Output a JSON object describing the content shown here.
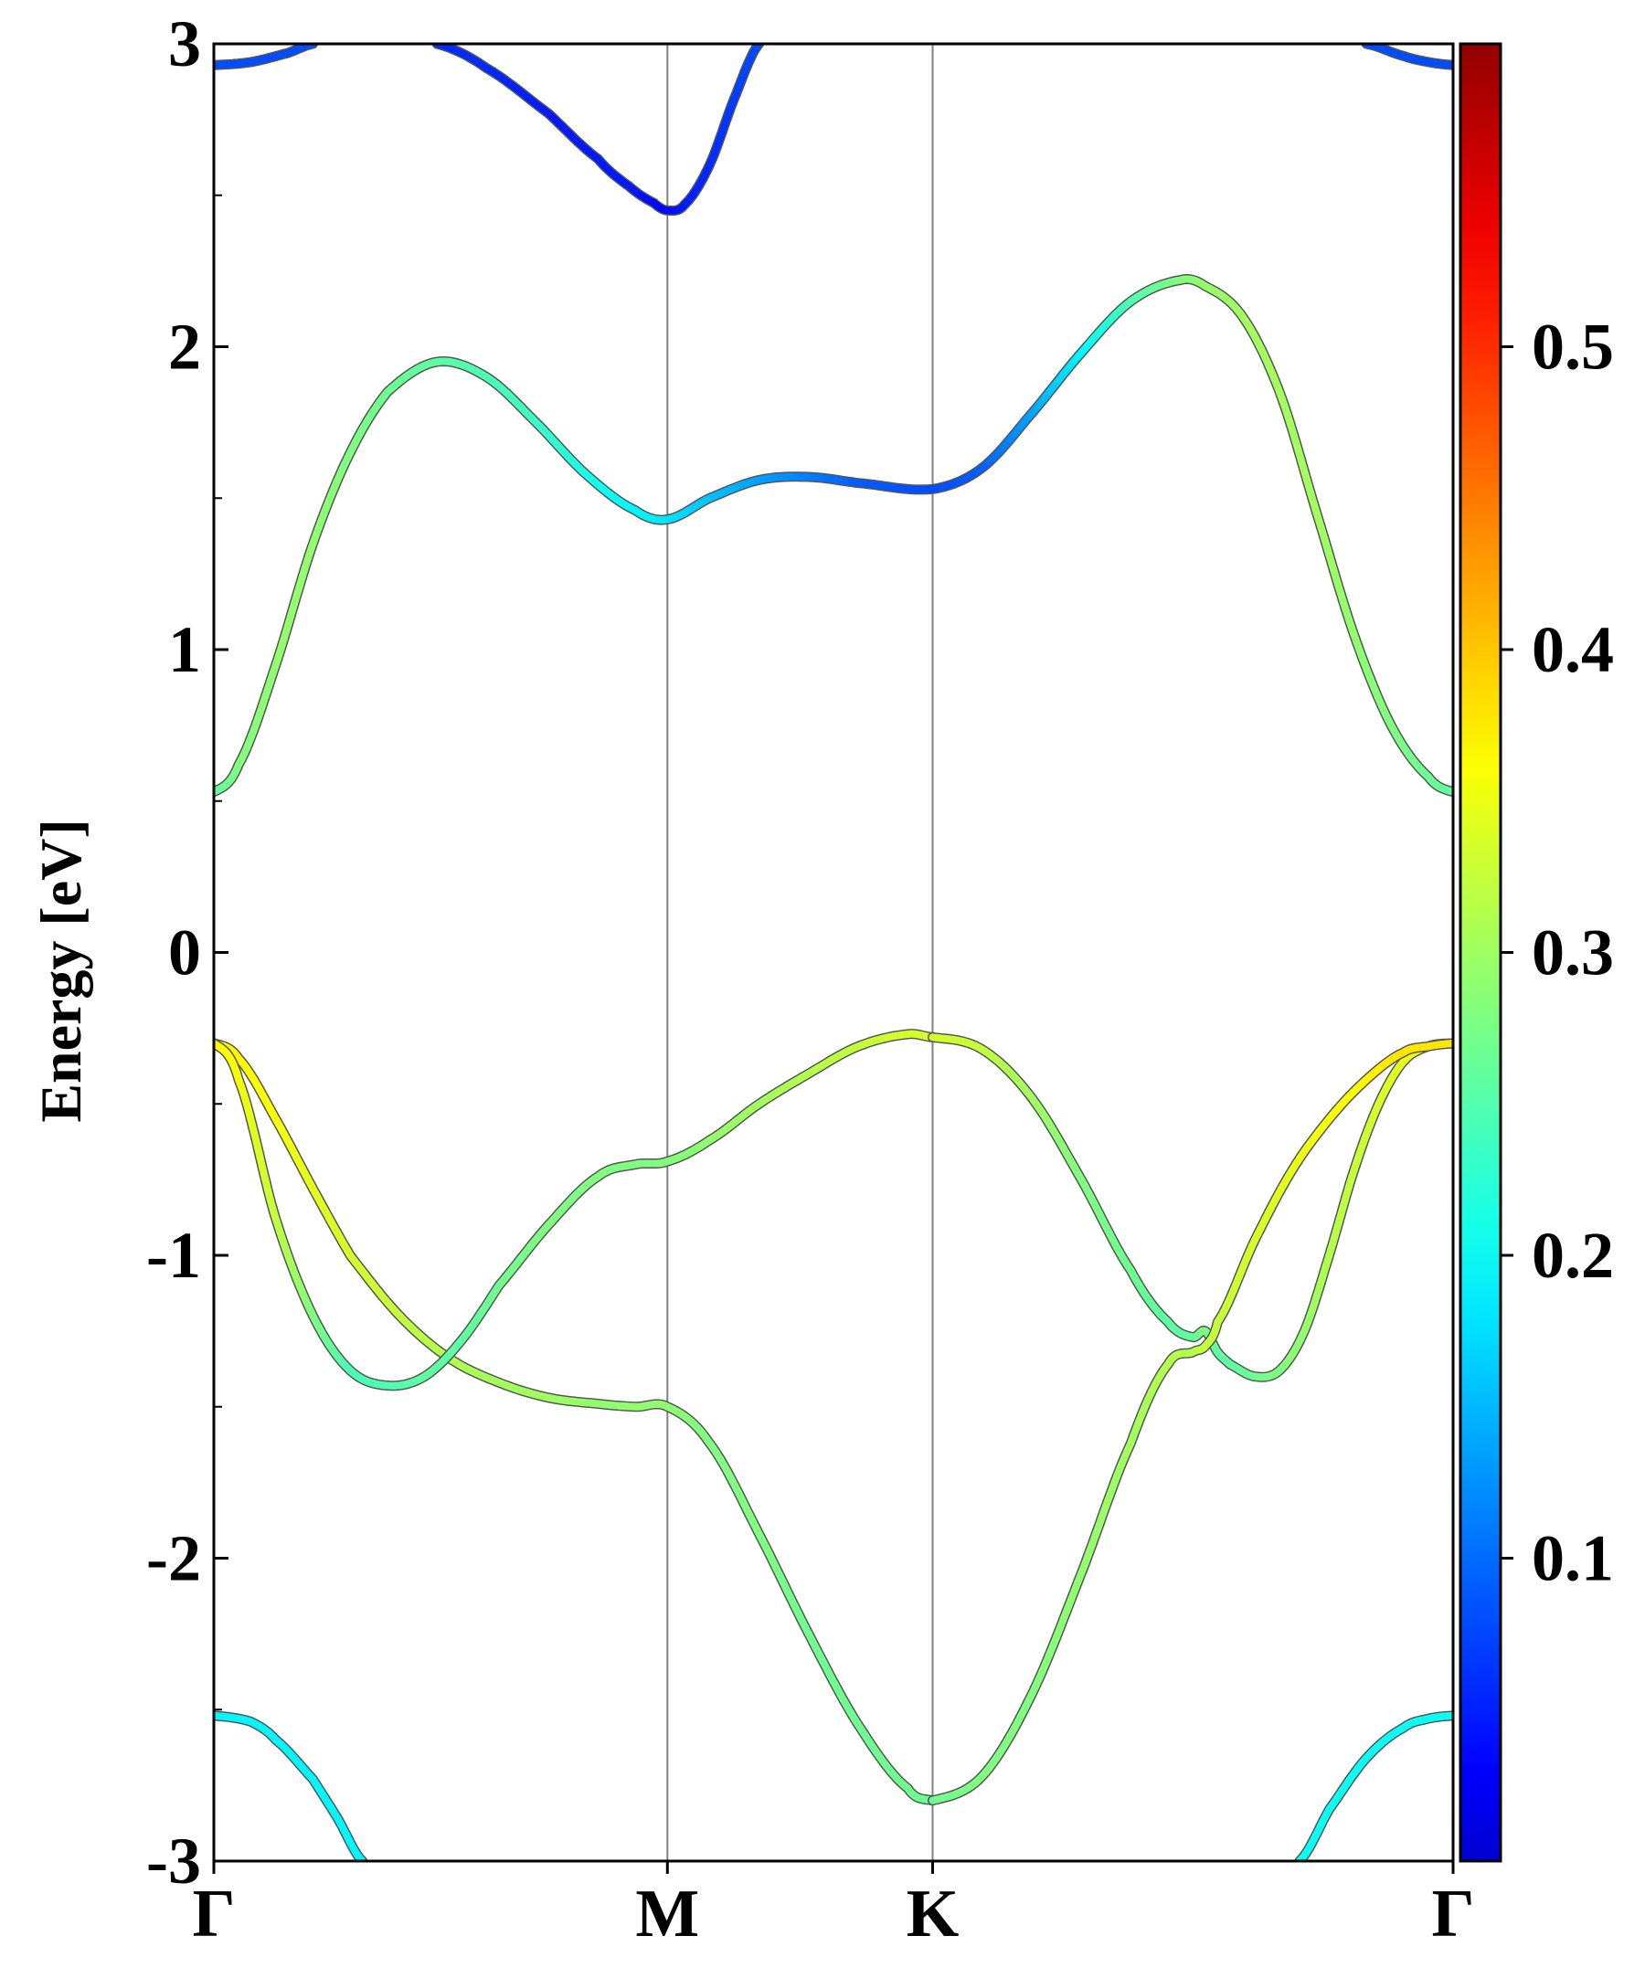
{
  "chart_data": {
    "type": "line",
    "ylabel": "Energy [eV]",
    "xlabel": "",
    "ylim": [
      -3,
      3
    ],
    "yticks": [
      3,
      2,
      1,
      0,
      -1,
      -2,
      -3
    ],
    "ytick_labels": [
      "3",
      "2",
      "1",
      "0",
      "-1",
      "-2",
      "-3"
    ],
    "xlim": [
      0,
      1
    ],
    "high_symmetry_points": [
      {
        "label": "Γ",
        "x": 0.0
      },
      {
        "label": "M",
        "x": 0.366
      },
      {
        "label": "K",
        "x": 0.58
      },
      {
        "label": "Γ",
        "x": 1.0
      }
    ],
    "colorbar": {
      "colormap": "jet",
      "min": 0.0,
      "max": 0.6,
      "ticks": [
        0.1,
        0.2,
        0.3,
        0.4,
        0.5
      ],
      "tick_labels": [
        "0.1",
        "0.2",
        "0.3",
        "0.4",
        "0.5"
      ]
    },
    "series": [
      {
        "x": [
          0.0,
          0.03,
          0.06,
          0.08
        ],
        "y": [
          2.93,
          2.94,
          2.97,
          3.0
        ],
        "weight": [
          0.12,
          0.12,
          0.12,
          0.12
        ]
      },
      {
        "x": [
          0.93,
          0.96,
          0.98,
          1.0
        ],
        "y": [
          3.0,
          2.96,
          2.94,
          2.93
        ],
        "weight": [
          0.12,
          0.12,
          0.12,
          0.12
        ]
      },
      {
        "x": [
          0.18,
          0.22,
          0.27,
          0.31,
          0.335,
          0.355,
          0.366,
          0.38,
          0.4,
          0.42,
          0.44
        ],
        "y": [
          3.0,
          2.92,
          2.77,
          2.62,
          2.53,
          2.475,
          2.45,
          2.47,
          2.6,
          2.82,
          3.0
        ],
        "weight": [
          0.1,
          0.1,
          0.09,
          0.09,
          0.09,
          0.08,
          0.08,
          0.09,
          0.1,
          0.11,
          0.12
        ]
      },
      {
        "x": [
          0.0,
          0.02,
          0.05,
          0.08,
          0.11,
          0.14,
          0.18,
          0.22,
          0.26,
          0.3,
          0.34,
          0.366,
          0.4,
          0.44,
          0.48,
          0.52,
          0.58,
          0.62,
          0.66,
          0.7,
          0.74,
          0.78,
          0.8,
          0.83,
          0.86,
          0.89,
          0.92,
          0.95,
          0.98,
          1.0
        ],
        "y": [
          0.53,
          0.62,
          0.95,
          1.35,
          1.65,
          1.85,
          1.95,
          1.9,
          1.75,
          1.58,
          1.46,
          1.43,
          1.5,
          1.56,
          1.57,
          1.55,
          1.53,
          1.6,
          1.78,
          1.98,
          2.15,
          2.22,
          2.2,
          2.1,
          1.85,
          1.45,
          1.05,
          0.75,
          0.58,
          0.53
        ],
        "weight": [
          0.28,
          0.3,
          0.31,
          0.31,
          0.3,
          0.29,
          0.28,
          0.27,
          0.26,
          0.24,
          0.22,
          0.21,
          0.19,
          0.17,
          0.15,
          0.13,
          0.12,
          0.13,
          0.17,
          0.22,
          0.27,
          0.3,
          0.31,
          0.32,
          0.32,
          0.32,
          0.31,
          0.3,
          0.29,
          0.28
        ]
      },
      {
        "x": [
          0.0,
          0.02,
          0.05,
          0.08,
          0.11,
          0.15,
          0.19,
          0.23,
          0.27,
          0.31,
          0.34,
          0.366,
          0.4,
          0.44,
          0.48,
          0.52,
          0.56,
          0.58
        ],
        "y": [
          -0.3,
          -0.35,
          -0.55,
          -0.78,
          -1.0,
          -1.2,
          -1.34,
          -1.42,
          -1.47,
          -1.49,
          -1.5,
          -1.5,
          -1.62,
          -1.92,
          -2.25,
          -2.55,
          -2.76,
          -2.8
        ],
        "weight": [
          0.38,
          0.38,
          0.37,
          0.36,
          0.35,
          0.34,
          0.33,
          0.32,
          0.32,
          0.31,
          0.31,
          0.31,
          0.3,
          0.3,
          0.29,
          0.29,
          0.29,
          0.29
        ]
      },
      {
        "x": [
          0.0,
          0.02,
          0.05,
          0.08,
          0.11,
          0.14,
          0.17,
          0.2,
          0.23,
          0.27,
          0.31,
          0.34,
          0.366,
          0.4,
          0.44,
          0.48,
          0.52,
          0.56,
          0.58
        ],
        "y": [
          -0.3,
          -0.42,
          -0.88,
          -1.2,
          -1.38,
          -1.43,
          -1.4,
          -1.28,
          -1.1,
          -0.9,
          -0.74,
          -0.7,
          -0.69,
          -0.62,
          -0.5,
          -0.4,
          -0.31,
          -0.27,
          -0.28
        ],
        "weight": [
          0.38,
          0.37,
          0.34,
          0.3,
          0.27,
          0.27,
          0.28,
          0.28,
          0.29,
          0.3,
          0.3,
          0.3,
          0.3,
          0.31,
          0.32,
          0.33,
          0.34,
          0.35,
          0.35
        ]
      },
      {
        "x": [
          0.58,
          0.62,
          0.66,
          0.7,
          0.74,
          0.77,
          0.79,
          0.8,
          0.81,
          0.82,
          0.84,
          0.86,
          0.88,
          0.9,
          0.92,
          0.94,
          0.96,
          0.98,
          1.0
        ],
        "y": [
          -0.28,
          -0.32,
          -0.48,
          -0.75,
          -1.05,
          -1.22,
          -1.27,
          -1.25,
          -1.32,
          -1.36,
          -1.4,
          -1.38,
          -1.25,
          -1.0,
          -0.72,
          -0.5,
          -0.36,
          -0.31,
          -0.3
        ],
        "weight": [
          0.35,
          0.34,
          0.32,
          0.3,
          0.29,
          0.28,
          0.28,
          0.3,
          0.28,
          0.28,
          0.29,
          0.3,
          0.31,
          0.33,
          0.34,
          0.35,
          0.36,
          0.37,
          0.38
        ]
      },
      {
        "x": [
          0.58,
          0.62,
          0.66,
          0.7,
          0.74,
          0.77,
          0.79,
          0.8,
          0.81,
          0.84,
          0.87,
          0.9,
          0.93,
          0.96,
          0.98,
          1.0
        ],
        "y": [
          -2.8,
          -2.72,
          -2.45,
          -2.05,
          -1.62,
          -1.36,
          -1.32,
          -1.3,
          -1.22,
          -0.95,
          -0.72,
          -0.55,
          -0.42,
          -0.33,
          -0.31,
          -0.3
        ],
        "weight": [
          0.29,
          0.3,
          0.3,
          0.31,
          0.32,
          0.33,
          0.33,
          0.34,
          0.34,
          0.35,
          0.36,
          0.37,
          0.38,
          0.39,
          0.39,
          0.39
        ]
      },
      {
        "x": [
          0.0,
          0.03,
          0.05,
          0.08,
          0.1,
          0.12
        ],
        "y": [
          -2.52,
          -2.54,
          -2.6,
          -2.73,
          -2.86,
          -3.0
        ],
        "weight": [
          0.22,
          0.22,
          0.22,
          0.22,
          0.22,
          0.22
        ]
      },
      {
        "x": [
          0.876,
          0.9,
          0.93,
          0.96,
          0.98,
          1.0
        ],
        "y": [
          -3.0,
          -2.83,
          -2.66,
          -2.56,
          -2.53,
          -2.52
        ],
        "weight": [
          0.23,
          0.23,
          0.23,
          0.23,
          0.23,
          0.23
        ]
      }
    ]
  }
}
